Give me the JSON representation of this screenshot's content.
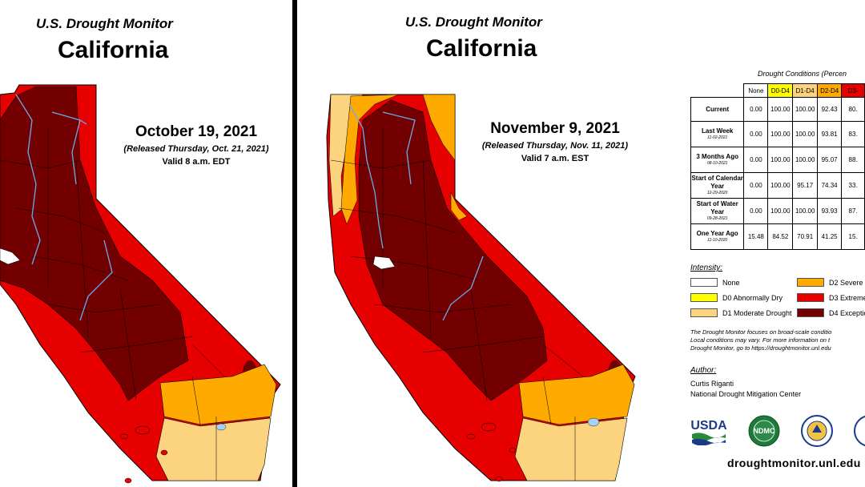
{
  "colors": {
    "none": "#ffffff",
    "d0": "#ffff00",
    "d1": "#fcd37f",
    "d2": "#ffaa00",
    "d3": "#e60000",
    "d4": "#730000",
    "river": "#6aaaf0"
  },
  "left_map": {
    "title": "U.S. Drought Monitor",
    "state": "California",
    "date": "October 19, 2021",
    "released": "(Released Thursday, Oct. 21, 2021)",
    "valid": "Valid 8 a.m. EDT"
  },
  "right_map": {
    "title": "U.S. Drought Monitor",
    "state": "California",
    "date": "November 9, 2021",
    "released": "(Released Thursday, Nov. 11, 2021)",
    "valid": "Valid 7 a.m. EST"
  },
  "stats": {
    "title": "Drought Conditions (Percen",
    "headers": [
      "None",
      "D0-D4",
      "D1-D4",
      "D2-D4",
      "D3-"
    ],
    "rows": [
      {
        "label": "Current",
        "date": "",
        "values": [
          "0.00",
          "100.00",
          "100.00",
          "92.43",
          "80."
        ]
      },
      {
        "label": "Last Week",
        "date": "11-02-2021",
        "values": [
          "0.00",
          "100.00",
          "100.00",
          "93.81",
          "83."
        ]
      },
      {
        "label": "3 Months Ago",
        "date": "08-10-2021",
        "values": [
          "0.00",
          "100.00",
          "100.00",
          "95.07",
          "88."
        ]
      },
      {
        "label": "Start of Calendar Year",
        "date": "12-29-2020",
        "values": [
          "0.00",
          "100.00",
          "95.17",
          "74.34",
          "33."
        ]
      },
      {
        "label": "Start of Water Year",
        "date": "09-28-2021",
        "values": [
          "0.00",
          "100.00",
          "100.00",
          "93.93",
          "87."
        ]
      },
      {
        "label": "One Year Ago",
        "date": "11-10-2020",
        "values": [
          "15.48",
          "84.52",
          "70.91",
          "41.25",
          "15."
        ]
      }
    ]
  },
  "legend": {
    "title": "Intensity:",
    "items": [
      {
        "label": "None",
        "color": "#ffffff"
      },
      {
        "label": "D0 Abnormally Dry",
        "color": "#ffff00"
      },
      {
        "label": "D1 Moderate Drought",
        "color": "#fcd37f"
      },
      {
        "label": "D2 Severe D",
        "color": "#ffaa00"
      },
      {
        "label": "D3 Extreme",
        "color": "#e60000"
      },
      {
        "label": "D4 Exceptio",
        "color": "#730000"
      }
    ]
  },
  "note": {
    "line1": "The Drought Monitor focuses on broad-scale conditio",
    "line2": "Local conditions may vary. For more information on t",
    "line3": "Drought Monitor, go to https://droughtmonitor.unl.edu"
  },
  "author": {
    "title": "Author:",
    "name": "Curtis Riganti",
    "org": "National Drought Mitigation Center"
  },
  "logos": {
    "usda": "USDA",
    "ndmc": "NDMC"
  },
  "url": "droughtmonitor.unl.edu"
}
